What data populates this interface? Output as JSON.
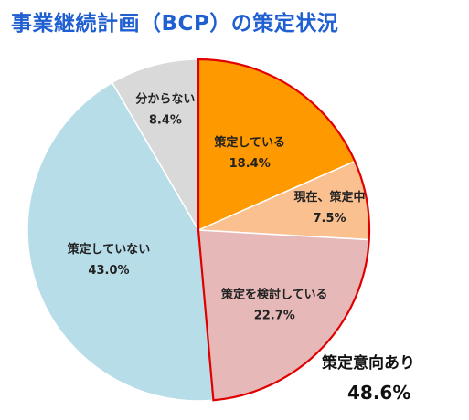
{
  "title": "事業継続計画（BCP）の策定状況",
  "chart_data": {
    "type": "pie",
    "title": "事業継続計画（BCP）の策定状況",
    "start": "top, clockwise",
    "slices": [
      {
        "label": "策定している",
        "value": 18.4,
        "value_label": "18.4%",
        "color": "#ff9900"
      },
      {
        "label": "現在、策定中",
        "value": 7.5,
        "value_label": "7.5%",
        "color": "#fac090"
      },
      {
        "label": "策定を検討している",
        "value": 22.7,
        "value_label": "22.7%",
        "color": "#e6b9b8"
      },
      {
        "label": "策定していない",
        "value": 43.0,
        "value_label": "43.0%",
        "color": "#b7dde8"
      },
      {
        "label": "分からない",
        "value": 8.4,
        "value_label": "8.4%",
        "color": "#d9d9d9"
      }
    ],
    "group_annotation": {
      "label": "策定意向あり",
      "value_label": "48.6%",
      "outline_color": "#e00000"
    }
  }
}
